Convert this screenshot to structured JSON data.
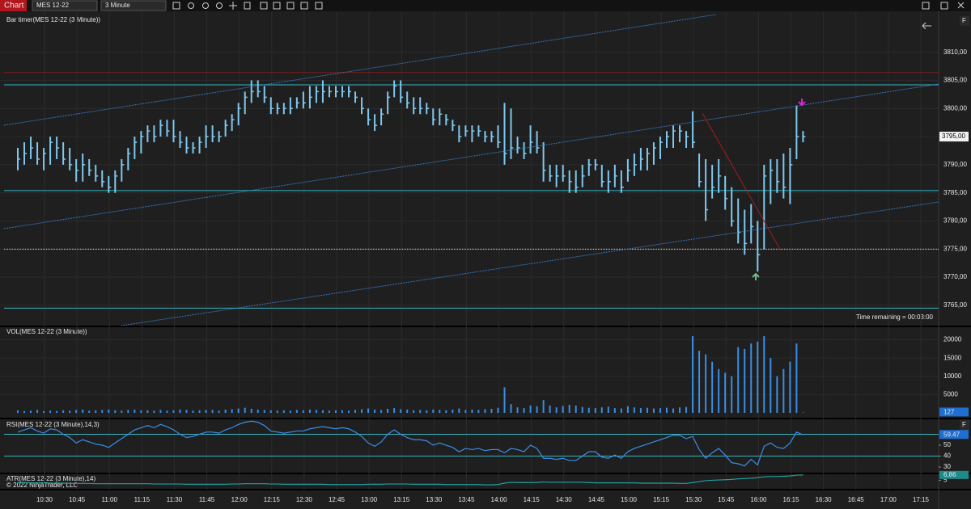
{
  "toolbar": {
    "tab": "Chart",
    "instrument": "MES 12-22",
    "interval": "3 Minute",
    "panel_button": "F"
  },
  "price_panel": {
    "label": "Bar timer(MES 12-22 (3 Minute))",
    "timer": "Time remaining = 00:03:00",
    "ylim": [
      3761.4,
      3815.7
    ],
    "yticks": [
      {
        "value": 3765,
        "label": "3765,00"
      },
      {
        "value": 3770,
        "label": "3770,00"
      },
      {
        "value": 3775,
        "label": "3775,00"
      },
      {
        "value": 3780,
        "label": "3780,00"
      },
      {
        "value": 3785,
        "label": "3785,00"
      },
      {
        "value": 3790,
        "label": "3790,00"
      },
      {
        "value": 3795,
        "label": "3795,00"
      },
      {
        "value": 3800,
        "label": "3800,00"
      },
      {
        "value": 3805,
        "label": "3805,00"
      },
      {
        "value": 3810,
        "label": "3810,00"
      }
    ],
    "current": {
      "value": 3795,
      "label": "3795,00"
    },
    "bar_color": "#7ec8ef",
    "hlines": [
      {
        "value": 3806.4,
        "color": "#7a1f1f",
        "style": "solid"
      },
      {
        "value": 3804.2,
        "color": "#35b8c4",
        "style": "solid"
      },
      {
        "value": 3785.4,
        "color": "#35b8c4",
        "style": "solid"
      },
      {
        "value": 3764.5,
        "color": "#35b8c4",
        "style": "solid"
      },
      {
        "value": 3775,
        "color": "#dddddd",
        "style": "dotted"
      }
    ],
    "high": [
      3793,
      3794,
      3795,
      3794,
      3793,
      3795,
      3795,
      3794,
      3793,
      3791,
      3792,
      3791,
      3790,
      3789,
      3788,
      3789,
      3791,
      3793,
      3795,
      3796,
      3797,
      3797,
      3798,
      3798,
      3798,
      3796,
      3795,
      3794,
      3795,
      3797,
      3797,
      3796,
      3798,
      3799,
      3801,
      3803,
      3805,
      3805,
      3804,
      3802,
      3801,
      3801,
      3802,
      3802,
      3803,
      3804,
      3804,
      3805,
      3804,
      3804,
      3804,
      3804,
      3803,
      3802,
      3800,
      3799,
      3800,
      3803,
      3805,
      3805,
      3803,
      3802,
      3802,
      3801,
      3800,
      3800,
      3799,
      3798,
      3797,
      3797,
      3797,
      3797,
      3796,
      3796,
      3797,
      3801,
      3800,
      3795,
      3794,
      3797,
      3796,
      3794,
      3790,
      3790,
      3790,
      3789,
      3789,
      3790,
      3791,
      3791,
      3790,
      3789,
      3790,
      3789,
      3791,
      3792,
      3793,
      3793,
      3794,
      3795,
      3796,
      3797,
      3797,
      3796,
      3799.5,
      3792,
      3791,
      3790,
      3791,
      3788,
      3786,
      3784,
      3782,
      3783,
      3780,
      3790,
      3791,
      3791,
      3792,
      3793,
      3800.5,
      3796
    ],
    "low": [
      3789,
      3790,
      3791,
      3790,
      3789,
      3790,
      3791,
      3790,
      3789,
      3787,
      3787,
      3788,
      3787,
      3786,
      3785,
      3785,
      3787,
      3789,
      3791,
      3792,
      3794,
      3794,
      3795,
      3795,
      3794,
      3793,
      3792,
      3792,
      3792,
      3793,
      3794,
      3794,
      3795,
      3796,
      3797,
      3799,
      3801,
      3802,
      3801,
      3799,
      3799,
      3799,
      3799,
      3800,
      3800,
      3800,
      3801,
      3801,
      3802,
      3802,
      3802,
      3802,
      3801,
      3799,
      3797,
      3796,
      3797,
      3799,
      3802,
      3801,
      3800,
      3799,
      3799,
      3799,
      3797,
      3797,
      3797,
      3796,
      3794,
      3795,
      3794,
      3795,
      3794,
      3794,
      3793,
      3790,
      3791,
      3792,
      3791,
      3792,
      3792,
      3787,
      3787,
      3786,
      3787,
      3785,
      3785,
      3786,
      3788,
      3789,
      3786,
      3785,
      3786,
      3785,
      3787,
      3788,
      3789,
      3789,
      3790,
      3791,
      3793,
      3793,
      3794,
      3793,
      3793,
      3786,
      3780,
      3784,
      3785,
      3782,
      3779,
      3776,
      3774,
      3776,
      3771,
      3775,
      3783,
      3785,
      3784,
      3783,
      3791,
      3794
    ],
    "close": [
      3791,
      3792,
      3793,
      3791,
      3792,
      3794,
      3793,
      3791,
      3790,
      3789,
      3790,
      3789,
      3788,
      3787,
      3786,
      3788,
      3790,
      3792,
      3794,
      3795,
      3796,
      3795,
      3797,
      3796,
      3795,
      3794,
      3793,
      3793,
      3794,
      3795,
      3795,
      3795,
      3797,
      3798,
      3800,
      3802,
      3803,
      3803,
      3802,
      3800,
      3800,
      3800,
      3800,
      3801,
      3801,
      3802,
      3803,
      3803,
      3803,
      3803,
      3803,
      3803,
      3802,
      3800,
      3798,
      3797,
      3799,
      3802,
      3804,
      3802,
      3801,
      3800,
      3800,
      3800,
      3798,
      3799,
      3798,
      3797,
      3795,
      3796,
      3796,
      3796,
      3795,
      3795,
      3794,
      3792,
      3793,
      3793,
      3792,
      3794,
      3793,
      3789,
      3788,
      3788,
      3788,
      3787,
      3786,
      3788,
      3790,
      3790,
      3787,
      3787,
      3788,
      3786,
      3789,
      3790,
      3791,
      3792,
      3793,
      3794,
      3795,
      3796,
      3796,
      3795,
      3794,
      3787,
      3782,
      3786,
      3788,
      3784,
      3780,
      3778,
      3776,
      3779,
      3774,
      3788,
      3789,
      3787,
      3786,
      3790,
      3795,
      3795
    ]
  },
  "volume_panel": {
    "label": "VOL(MES 12-22 (3 Minute))",
    "ylim": [
      0,
      23000
    ],
    "yticks": [
      5000,
      10000,
      15000,
      20000
    ],
    "current": 127,
    "color": "#3a8ee6",
    "values": [
      700,
      500,
      600,
      800,
      500,
      600,
      500,
      700,
      600,
      800,
      900,
      600,
      700,
      800,
      900,
      700,
      600,
      800,
      900,
      700,
      700,
      600,
      800,
      600,
      700,
      900,
      800,
      600,
      700,
      800,
      800,
      600,
      900,
      1000,
      1200,
      1400,
      1100,
      900,
      800,
      700,
      600,
      700,
      600,
      800,
      700,
      900,
      800,
      700,
      600,
      700,
      700,
      600,
      800,
      1000,
      1200,
      900,
      800,
      1100,
      1300,
      1000,
      900,
      700,
      800,
      700,
      900,
      800,
      700,
      900,
      1200,
      800,
      900,
      800,
      1000,
      1100,
      1400,
      7000,
      2400,
      1500,
      1300,
      2000,
      1800,
      3500,
      2000,
      1500,
      1900,
      2200,
      2000,
      1600,
      1400,
      1300,
      1500,
      1700,
      1300,
      1200,
      1800,
      1500,
      1300,
      1400,
      1200,
      1300,
      1400,
      1200,
      1500,
      1600,
      21000,
      17000,
      16000,
      14000,
      12000,
      11000,
      10000,
      18000,
      17500,
      19000,
      19500,
      21000,
      15000,
      10000,
      12000,
      14000,
      19000,
      127
    ]
  },
  "rsi_panel": {
    "label": "RSI(MES 12-22 (3 Minute),14,3)",
    "ylim": [
      25.6,
      72.2
    ],
    "yticks": [
      30,
      40,
      50
    ],
    "levels": [
      60,
      40
    ],
    "current": 59.47,
    "color": "#3a8ee6",
    "values": [
      62,
      64,
      66,
      63,
      61,
      65,
      64,
      60,
      57,
      52,
      55,
      53,
      51,
      50,
      48,
      52,
      56,
      60,
      64,
      66,
      68,
      66,
      69,
      67,
      64,
      60,
      57,
      58,
      60,
      62,
      62,
      61,
      64,
      66,
      69,
      71,
      72,
      71,
      68,
      63,
      62,
      61,
      62,
      63,
      63,
      65,
      66,
      67,
      66,
      65,
      66,
      65,
      62,
      58,
      52,
      49,
      53,
      60,
      64,
      60,
      57,
      55,
      55,
      54,
      50,
      52,
      50,
      48,
      44,
      47,
      46,
      47,
      45,
      46,
      46,
      43,
      47,
      46,
      44,
      50,
      47,
      38,
      38,
      37,
      38,
      36,
      36,
      40,
      44,
      44,
      39,
      38,
      41,
      38,
      44,
      47,
      49,
      51,
      53,
      55,
      57,
      59,
      59,
      56,
      58,
      46,
      38,
      43,
      47,
      41,
      34,
      33,
      31,
      37,
      32,
      49,
      52,
      48,
      47,
      52,
      62,
      59.47
    ]
  },
  "atr_panel": {
    "label": "ATR(MES 12-22 (3 Minute),14)",
    "copyright": "© 2022 NinjaTrader, LLC",
    "ylim": [
      2.3,
      7.1
    ],
    "yticks": [
      5
    ],
    "current": {
      "value": 6.86,
      "label": "6,86"
    },
    "color": "#20a0a0",
    "values": [
      4.2,
      4.2,
      4.1,
      4.1,
      4.1,
      4.0,
      4.0,
      4.0,
      3.9,
      3.9,
      3.9,
      3.9,
      3.8,
      3.8,
      3.8,
      3.8,
      3.8,
      3.8,
      3.8,
      3.8,
      3.8,
      3.7,
      3.7,
      3.7,
      3.7,
      3.7,
      3.6,
      3.6,
      3.6,
      3.6,
      3.6,
      3.6,
      3.6,
      3.7,
      3.7,
      3.8,
      3.8,
      3.8,
      3.8,
      3.7,
      3.7,
      3.6,
      3.6,
      3.6,
      3.6,
      3.6,
      3.6,
      3.6,
      3.5,
      3.5,
      3.5,
      3.5,
      3.5,
      3.5,
      3.6,
      3.6,
      3.6,
      3.7,
      3.7,
      3.7,
      3.7,
      3.6,
      3.6,
      3.6,
      3.6,
      3.6,
      3.5,
      3.5,
      3.5,
      3.5,
      3.5,
      3.5,
      3.4,
      3.4,
      3.5,
      4.0,
      4.3,
      4.2,
      4.2,
      4.2,
      4.2,
      4.4,
      4.3,
      4.3,
      4.3,
      4.3,
      4.3,
      4.3,
      4.2,
      4.1,
      4.1,
      4.1,
      4.1,
      4.1,
      4.1,
      4.1,
      4.0,
      4.0,
      4.0,
      4.0,
      4.0,
      4.0,
      3.9,
      3.9,
      4.2,
      4.5,
      4.9,
      5.0,
      5.1,
      5.2,
      5.3,
      5.5,
      5.6,
      5.7,
      5.9,
      6.2,
      6.3,
      6.3,
      6.4,
      6.5,
      6.8,
      6.86
    ]
  },
  "time_axis": {
    "ticks": [
      "10:30",
      "10:45",
      "11:00",
      "11:15",
      "11:30",
      "11:45",
      "12:00",
      "12:15",
      "12:30",
      "12:45",
      "13:00",
      "13:15",
      "13:30",
      "13:45",
      "14:00",
      "14:15",
      "14:30",
      "14:45",
      "15:00",
      "15:15",
      "15:30",
      "15:45",
      "16:00",
      "16:15",
      "16:30",
      "16:45",
      "17:00",
      "17:15"
    ]
  }
}
